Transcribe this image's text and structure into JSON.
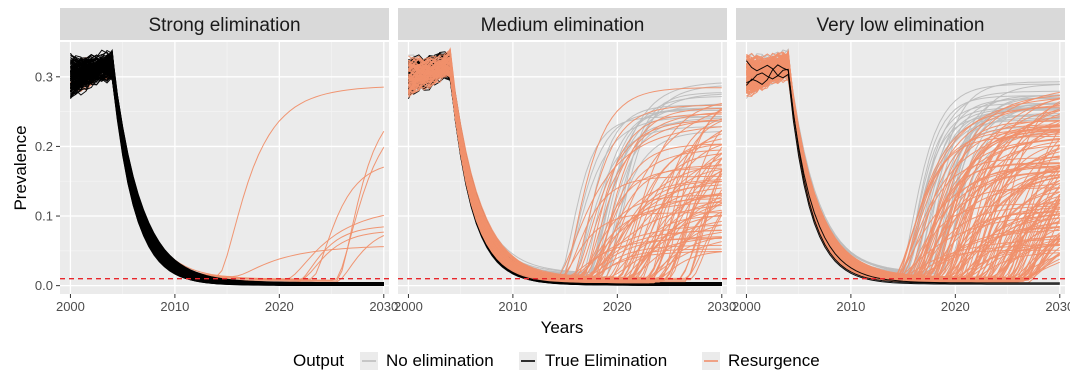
{
  "chart_data": {
    "type": "line",
    "facets": [
      "Strong elimination",
      "Medium elimination",
      "Very low elimination"
    ],
    "xlabel": "Years",
    "ylabel": "Prevalence",
    "xlim": [
      1999,
      2030.5
    ],
    "ylim": [
      -0.012,
      0.35
    ],
    "x_ticks": [
      2000,
      2010,
      2020,
      2030
    ],
    "y_ticks": [
      0.0,
      0.1,
      0.2,
      0.3
    ],
    "y_tick_labels": [
      "0.0",
      "0.1",
      "0.2",
      "0.3"
    ],
    "threshold": {
      "y": 0.01,
      "color": "#e8262b",
      "style": "dashed"
    },
    "legend": {
      "title": "Output",
      "position": "bottom",
      "entries": [
        {
          "label": "No elimination",
          "color": "#bdbdbd"
        },
        {
          "label": "True Elimination",
          "color": "#000000"
        },
        {
          "label": "Resurgence",
          "color": "#f0906c"
        }
      ]
    },
    "colors": {
      "panel_bg": "#ebebeb",
      "grid_major": "#ffffff",
      "grid_minor": "#f4f4f4",
      "strip_bg": "#d9d9d9"
    },
    "representative_trajectories": [
      {
        "facet": 0,
        "output": "True Elimination",
        "x": [
          2000,
          2004,
          2006,
          2008,
          2010,
          2012,
          2014,
          2016,
          2020,
          2030
        ],
        "y": [
          0.3,
          0.31,
          0.22,
          0.1,
          0.045,
          0.02,
          0.008,
          0.003,
          0.002,
          0.001
        ]
      },
      {
        "facet": 0,
        "output": "Resurgence",
        "x": [
          2000,
          2004,
          2006,
          2008,
          2010,
          2012,
          2014,
          2016,
          2020,
          2024,
          2028,
          2030
        ],
        "y": [
          0.31,
          0.32,
          0.21,
          0.09,
          0.04,
          0.018,
          0.009,
          0.01,
          0.05,
          0.12,
          0.2,
          0.24
        ]
      },
      {
        "facet": 1,
        "output": "No elimination",
        "x": [
          2000,
          2004,
          2006,
          2008,
          2010,
          2012,
          2014,
          2016,
          2018,
          2020,
          2024,
          2028,
          2030
        ],
        "y": [
          0.29,
          0.31,
          0.2,
          0.09,
          0.042,
          0.022,
          0.014,
          0.02,
          0.06,
          0.15,
          0.23,
          0.26,
          0.27
        ]
      },
      {
        "facet": 1,
        "output": "True Elimination",
        "x": [
          2000,
          2004,
          2006,
          2008,
          2010,
          2012,
          2014,
          2016,
          2020,
          2030
        ],
        "y": [
          0.3,
          0.31,
          0.21,
          0.09,
          0.04,
          0.018,
          0.008,
          0.004,
          0.003,
          0.002
        ]
      },
      {
        "facet": 1,
        "output": "Resurgence",
        "x": [
          2000,
          2004,
          2006,
          2008,
          2010,
          2012,
          2014,
          2016,
          2020,
          2024,
          2028,
          2030
        ],
        "y": [
          0.3,
          0.32,
          0.2,
          0.09,
          0.04,
          0.02,
          0.012,
          0.014,
          0.04,
          0.12,
          0.21,
          0.25
        ]
      },
      {
        "facet": 2,
        "output": "No elimination",
        "x": [
          2000,
          2004,
          2006,
          2008,
          2010,
          2012,
          2014,
          2016,
          2018,
          2020,
          2024,
          2028,
          2030
        ],
        "y": [
          0.3,
          0.31,
          0.2,
          0.09,
          0.04,
          0.022,
          0.014,
          0.022,
          0.07,
          0.17,
          0.24,
          0.27,
          0.28
        ]
      },
      {
        "facet": 2,
        "output": "Resurgence",
        "x": [
          2000,
          2004,
          2006,
          2008,
          2010,
          2012,
          2014,
          2016,
          2018,
          2020,
          2024,
          2028,
          2030
        ],
        "y": [
          0.3,
          0.32,
          0.2,
          0.09,
          0.04,
          0.02,
          0.012,
          0.012,
          0.03,
          0.08,
          0.18,
          0.25,
          0.27
        ]
      },
      {
        "facet": 2,
        "output": "True Elimination",
        "x": [
          2000,
          2004,
          2006,
          2008,
          2010,
          2012,
          2014,
          2016,
          2020,
          2030
        ],
        "y": [
          0.3,
          0.31,
          0.2,
          0.09,
          0.04,
          0.018,
          0.008,
          0.004,
          0.003,
          0.003
        ]
      }
    ]
  }
}
